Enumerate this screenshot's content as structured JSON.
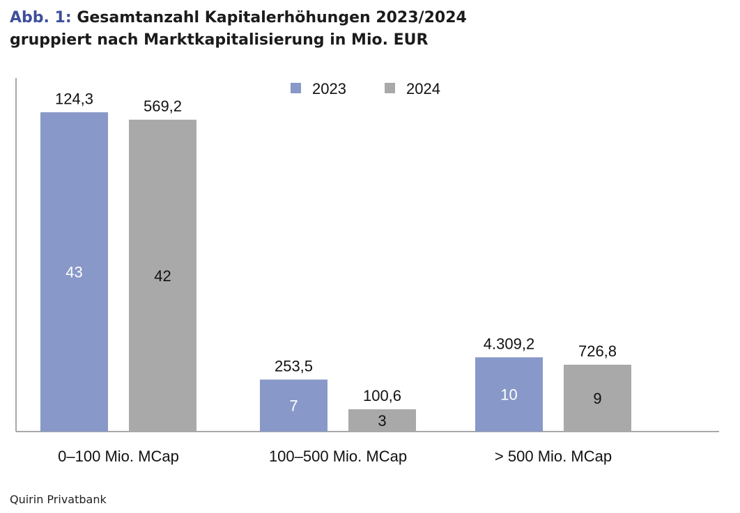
{
  "header": {
    "figure_label": "Abb. 1:",
    "title_line1": "Gesamtanzahl Kapitalerhöhungen 2023/2024",
    "title_line2": "gruppiert nach Marktkapitalisierung in Mio. EUR"
  },
  "source": "Quirin Privatbank",
  "chart_data": {
    "type": "bar",
    "title": "Gesamtanzahl Kapitalerhöhungen 2023/2024 gruppiert nach Marktkapitalisierung in Mio. EUR",
    "categories": [
      "0–100 Mio. MCap",
      "100–500 Mio. MCap",
      "> 500 Mio. MCap"
    ],
    "series": [
      {
        "name": "2023",
        "color": "#8898c8",
        "values": [
          43,
          7,
          10
        ],
        "inner_labels": [
          "43",
          "7",
          "10"
        ],
        "top_labels": [
          "124,3",
          "253,5",
          "4.309,2"
        ],
        "inner_label_color": "#ffffff"
      },
      {
        "name": "2024",
        "color": "#a9a9a9",
        "values": [
          42,
          3,
          9
        ],
        "inner_labels": [
          "42",
          "3",
          "9"
        ],
        "top_labels": [
          "569,2",
          "100,6",
          "726,8"
        ],
        "inner_label_color": "#111111"
      }
    ],
    "xlabel": "",
    "ylabel": "",
    "ylim": [
      0,
      43.4
    ],
    "grid": false,
    "legend": "top-center",
    "axis_color": "#8c8c8c"
  }
}
